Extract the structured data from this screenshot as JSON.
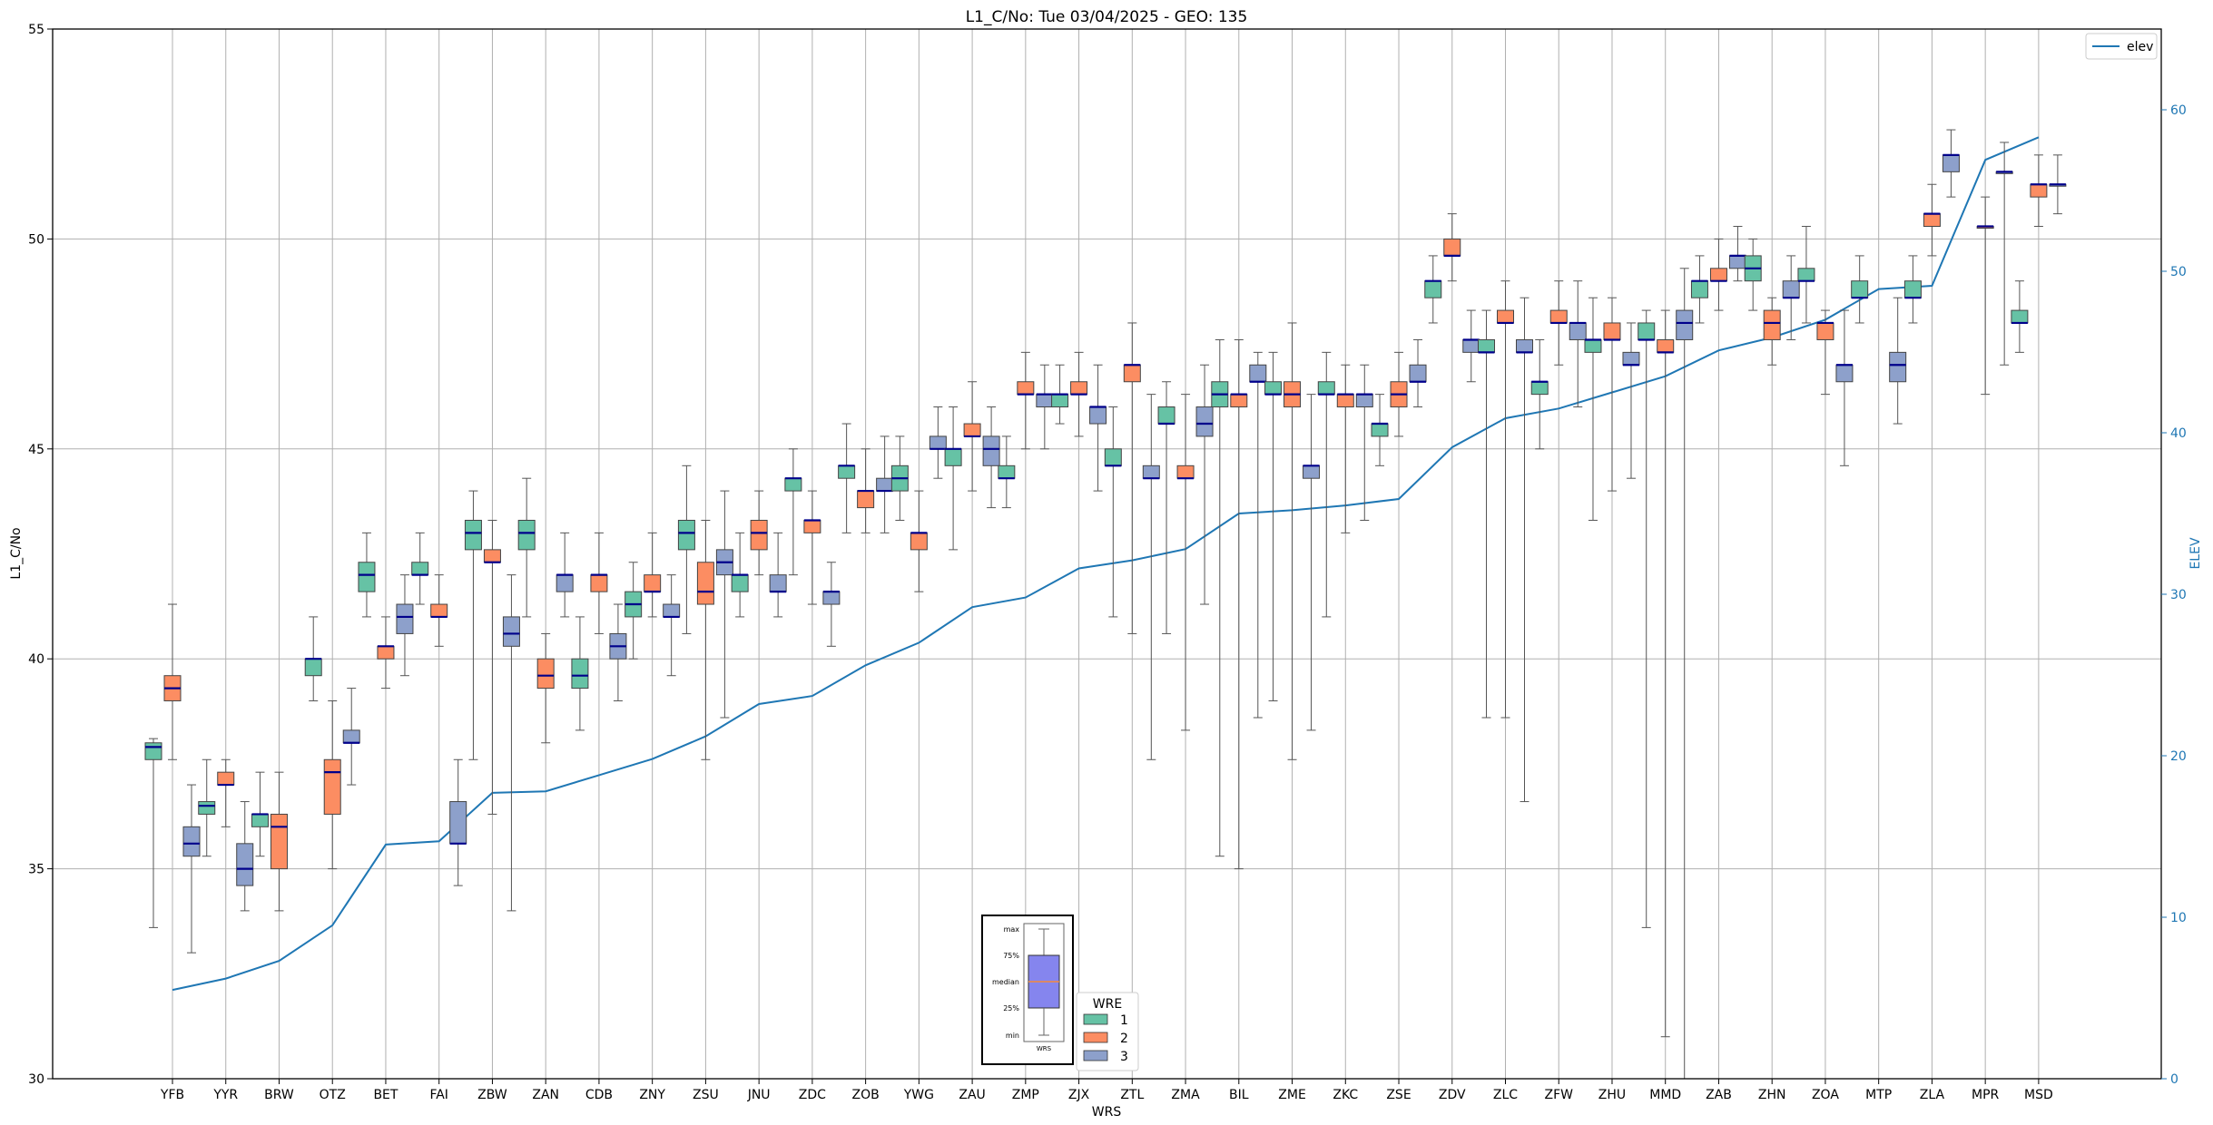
{
  "chart_data": {
    "type": "box",
    "title": "L1_C/No: Tue 03/04/2025 - GEO: 135",
    "xlabel": "WRS",
    "ylabel": "L1_C/No",
    "y2label": "ELEV",
    "ylim": [
      30,
      55
    ],
    "y2lim": [
      0,
      65
    ],
    "yticks": [
      "30",
      "35",
      "40",
      "45",
      "50",
      "55"
    ],
    "y2ticks": [
      "0",
      "10",
      "20",
      "30",
      "40",
      "50",
      "60"
    ],
    "grid": true,
    "categories": [
      "YFB",
      "YYR",
      "BRW",
      "OTZ",
      "BET",
      "FAI",
      "ZBW",
      "ZAN",
      "CDB",
      "ZNY",
      "ZSU",
      "JNU",
      "ZDC",
      "ZOB",
      "YWG",
      "ZAU",
      "ZMP",
      "ZJX",
      "ZTL",
      "ZMA",
      "BIL",
      "ZME",
      "ZKC",
      "ZSE",
      "ZDV",
      "ZLC",
      "ZFW",
      "ZHU",
      "MMD",
      "ZAB",
      "ZHN",
      "ZOA",
      "MTP",
      "ZLA",
      "MPR",
      "MSD"
    ],
    "wre_colors": {
      "1": "#66c2a5",
      "2": "#fc8d62",
      "3": "#8da0cb"
    },
    "median_color": "#00008b",
    "elev_color": "#1f77b4",
    "boxes": [
      {
        "site": "YFB",
        "wre": 1,
        "min": 33.6,
        "q1": 37.6,
        "median": 37.9,
        "q3": 38.0,
        "max": 38.1
      },
      {
        "site": "YFB",
        "wre": 2,
        "min": 37.6,
        "q1": 39.0,
        "median": 39.3,
        "q3": 39.6,
        "max": 41.3
      },
      {
        "site": "YFB",
        "wre": 3,
        "min": 33.0,
        "q1": 35.3,
        "median": 35.6,
        "q3": 36.0,
        "max": 37.0
      },
      {
        "site": "YYR",
        "wre": 1,
        "min": 35.3,
        "q1": 36.3,
        "median": 36.5,
        "q3": 36.6,
        "max": 37.6
      },
      {
        "site": "YYR",
        "wre": 2,
        "min": 36.0,
        "q1": 37.0,
        "median": 37.0,
        "q3": 37.3,
        "max": 37.6
      },
      {
        "site": "YYR",
        "wre": 3,
        "min": 34.0,
        "q1": 34.6,
        "median": 35.0,
        "q3": 35.6,
        "max": 36.6
      },
      {
        "site": "BRW",
        "wre": 1,
        "min": 35.3,
        "q1": 36.0,
        "median": 36.3,
        "q3": 36.3,
        "max": 37.3
      },
      {
        "site": "BRW",
        "wre": 2,
        "min": 34.0,
        "q1": 35.0,
        "median": 36.0,
        "q3": 36.3,
        "max": 37.3
      },
      {
        "site": "OTZ",
        "wre": 1,
        "min": 39.0,
        "q1": 39.6,
        "median": 40.0,
        "q3": 40.0,
        "max": 41.0
      },
      {
        "site": "OTZ",
        "wre": 2,
        "min": 35.0,
        "q1": 36.3,
        "median": 37.3,
        "q3": 37.6,
        "max": 39.0
      },
      {
        "site": "OTZ",
        "wre": 3,
        "min": 37.0,
        "q1": 38.0,
        "median": 38.0,
        "q3": 38.3,
        "max": 39.3
      },
      {
        "site": "BET",
        "wre": 1,
        "min": 41.0,
        "q1": 41.6,
        "median": 42.0,
        "q3": 42.3,
        "max": 43.0
      },
      {
        "site": "BET",
        "wre": 2,
        "min": 39.3,
        "q1": 40.0,
        "median": 40.3,
        "q3": 40.3,
        "max": 41.0
      },
      {
        "site": "BET",
        "wre": 3,
        "min": 39.6,
        "q1": 40.6,
        "median": 41.0,
        "q3": 41.3,
        "max": 42.0
      },
      {
        "site": "FAI",
        "wre": 1,
        "min": 41.3,
        "q1": 42.0,
        "median": 42.0,
        "q3": 42.3,
        "max": 43.0
      },
      {
        "site": "FAI",
        "wre": 2,
        "min": 40.3,
        "q1": 41.0,
        "median": 41.0,
        "q3": 41.3,
        "max": 42.0
      },
      {
        "site": "FAI",
        "wre": 3,
        "min": 34.6,
        "q1": 35.6,
        "median": 35.6,
        "q3": 36.6,
        "max": 37.6
      },
      {
        "site": "ZBW",
        "wre": 1,
        "min": 37.6,
        "q1": 42.6,
        "median": 43.0,
        "q3": 43.3,
        "max": 44.0
      },
      {
        "site": "ZBW",
        "wre": 2,
        "min": 36.3,
        "q1": 42.3,
        "median": 42.3,
        "q3": 42.6,
        "max": 43.3
      },
      {
        "site": "ZBW",
        "wre": 3,
        "min": 34.0,
        "q1": 40.3,
        "median": 40.6,
        "q3": 41.0,
        "max": 42.0
      },
      {
        "site": "ZAN",
        "wre": 1,
        "min": 41.0,
        "q1": 42.6,
        "median": 43.0,
        "q3": 43.3,
        "max": 44.3
      },
      {
        "site": "ZAN",
        "wre": 2,
        "min": 38.0,
        "q1": 39.3,
        "median": 39.6,
        "q3": 40.0,
        "max": 40.6
      },
      {
        "site": "ZAN",
        "wre": 3,
        "min": 41.0,
        "q1": 41.6,
        "median": 42.0,
        "q3": 42.0,
        "max": 43.0
      },
      {
        "site": "CDB",
        "wre": 1,
        "min": 38.3,
        "q1": 39.3,
        "median": 39.6,
        "q3": 40.0,
        "max": 41.0
      },
      {
        "site": "CDB",
        "wre": 2,
        "min": 40.6,
        "q1": 41.6,
        "median": 42.0,
        "q3": 42.0,
        "max": 43.0
      },
      {
        "site": "CDB",
        "wre": 3,
        "min": 39.0,
        "q1": 40.0,
        "median": 40.3,
        "q3": 40.6,
        "max": 41.3
      },
      {
        "site": "ZNY",
        "wre": 1,
        "min": 40.0,
        "q1": 41.0,
        "median": 41.3,
        "q3": 41.6,
        "max": 42.3
      },
      {
        "site": "ZNY",
        "wre": 2,
        "min": 41.0,
        "q1": 41.6,
        "median": 41.6,
        "q3": 42.0,
        "max": 43.0
      },
      {
        "site": "ZNY",
        "wre": 3,
        "min": 39.6,
        "q1": 41.0,
        "median": 41.0,
        "q3": 41.3,
        "max": 42.0
      },
      {
        "site": "ZSU",
        "wre": 1,
        "min": 40.6,
        "q1": 42.6,
        "median": 43.0,
        "q3": 43.3,
        "max": 44.6
      },
      {
        "site": "ZSU",
        "wre": 2,
        "min": 37.6,
        "q1": 41.3,
        "median": 41.6,
        "q3": 42.3,
        "max": 43.3
      },
      {
        "site": "ZSU",
        "wre": 3,
        "min": 38.6,
        "q1": 42.0,
        "median": 42.3,
        "q3": 42.6,
        "max": 44.0
      },
      {
        "site": "JNU",
        "wre": 1,
        "min": 41.0,
        "q1": 41.6,
        "median": 42.0,
        "q3": 42.0,
        "max": 43.0
      },
      {
        "site": "JNU",
        "wre": 2,
        "min": 42.0,
        "q1": 42.6,
        "median": 43.0,
        "q3": 43.3,
        "max": 44.0
      },
      {
        "site": "JNU",
        "wre": 3,
        "min": 41.0,
        "q1": 41.6,
        "median": 41.6,
        "q3": 42.0,
        "max": 43.0
      },
      {
        "site": "ZDC",
        "wre": 1,
        "min": 42.0,
        "q1": 44.0,
        "median": 44.3,
        "q3": 44.3,
        "max": 45.0
      },
      {
        "site": "ZDC",
        "wre": 2,
        "min": 41.3,
        "q1": 43.0,
        "median": 43.3,
        "q3": 43.3,
        "max": 44.0
      },
      {
        "site": "ZDC",
        "wre": 3,
        "min": 40.3,
        "q1": 41.3,
        "median": 41.6,
        "q3": 41.6,
        "max": 42.3
      },
      {
        "site": "ZOB",
        "wre": 1,
        "min": 43.0,
        "q1": 44.3,
        "median": 44.6,
        "q3": 44.6,
        "max": 45.6
      },
      {
        "site": "ZOB",
        "wre": 2,
        "min": 43.0,
        "q1": 43.6,
        "median": 44.0,
        "q3": 44.0,
        "max": 45.0
      },
      {
        "site": "ZOB",
        "wre": 3,
        "min": 43.0,
        "q1": 44.0,
        "median": 44.0,
        "q3": 44.3,
        "max": 45.3
      },
      {
        "site": "YWG",
        "wre": 1,
        "min": 43.3,
        "q1": 44.0,
        "median": 44.3,
        "q3": 44.6,
        "max": 45.3
      },
      {
        "site": "YWG",
        "wre": 2,
        "min": 41.6,
        "q1": 42.6,
        "median": 43.0,
        "q3": 43.0,
        "max": 44.0
      },
      {
        "site": "YWG",
        "wre": 3,
        "min": 44.3,
        "q1": 45.0,
        "median": 45.0,
        "q3": 45.3,
        "max": 46.0
      },
      {
        "site": "ZAU",
        "wre": 1,
        "min": 42.6,
        "q1": 44.6,
        "median": 45.0,
        "q3": 45.0,
        "max": 46.0
      },
      {
        "site": "ZAU",
        "wre": 2,
        "min": 44.0,
        "q1": 45.3,
        "median": 45.3,
        "q3": 45.6,
        "max": 46.6
      },
      {
        "site": "ZAU",
        "wre": 3,
        "min": 43.6,
        "q1": 44.6,
        "median": 45.0,
        "q3": 45.3,
        "max": 46.0
      },
      {
        "site": "ZMP",
        "wre": 1,
        "min": 43.6,
        "q1": 44.3,
        "median": 44.3,
        "q3": 44.6,
        "max": 45.3
      },
      {
        "site": "ZMP",
        "wre": 2,
        "min": 45.0,
        "q1": 46.3,
        "median": 46.3,
        "q3": 46.6,
        "max": 47.3
      },
      {
        "site": "ZMP",
        "wre": 3,
        "min": 45.0,
        "q1": 46.0,
        "median": 46.3,
        "q3": 46.3,
        "max": 47.0
      },
      {
        "site": "ZJX",
        "wre": 1,
        "min": 45.6,
        "q1": 46.0,
        "median": 46.3,
        "q3": 46.3,
        "max": 47.0
      },
      {
        "site": "ZJX",
        "wre": 2,
        "min": 45.3,
        "q1": 46.3,
        "median": 46.3,
        "q3": 46.6,
        "max": 47.3
      },
      {
        "site": "ZJX",
        "wre": 3,
        "min": 44.0,
        "q1": 45.6,
        "median": 46.0,
        "q3": 46.0,
        "max": 47.0
      },
      {
        "site": "ZTL",
        "wre": 1,
        "min": 41.0,
        "q1": 44.6,
        "median": 44.6,
        "q3": 45.0,
        "max": 46.0
      },
      {
        "site": "ZTL",
        "wre": 2,
        "min": 40.6,
        "q1": 46.6,
        "median": 47.0,
        "q3": 47.0,
        "max": 48.0
      },
      {
        "site": "ZTL",
        "wre": 3,
        "min": 37.6,
        "q1": 44.3,
        "median": 44.3,
        "q3": 44.6,
        "max": 46.3
      },
      {
        "site": "ZMA",
        "wre": 1,
        "min": 40.6,
        "q1": 45.6,
        "median": 45.6,
        "q3": 46.0,
        "max": 46.6
      },
      {
        "site": "ZMA",
        "wre": 2,
        "min": 38.3,
        "q1": 44.3,
        "median": 44.3,
        "q3": 44.6,
        "max": 46.3
      },
      {
        "site": "ZMA",
        "wre": 3,
        "min": 41.3,
        "q1": 45.3,
        "median": 45.6,
        "q3": 46.0,
        "max": 47.0
      },
      {
        "site": "BIL",
        "wre": 1,
        "min": 35.3,
        "q1": 46.0,
        "median": 46.3,
        "q3": 46.6,
        "max": 47.6
      },
      {
        "site": "BIL",
        "wre": 2,
        "min": 35.0,
        "q1": 46.0,
        "median": 46.3,
        "q3": 46.3,
        "max": 47.6
      },
      {
        "site": "BIL",
        "wre": 3,
        "min": 38.6,
        "q1": 46.6,
        "median": 46.6,
        "q3": 47.0,
        "max": 47.3
      },
      {
        "site": "ZME",
        "wre": 1,
        "min": 39.0,
        "q1": 46.3,
        "median": 46.3,
        "q3": 46.6,
        "max": 47.3
      },
      {
        "site": "ZME",
        "wre": 2,
        "min": 37.6,
        "q1": 46.0,
        "median": 46.3,
        "q3": 46.6,
        "max": 48.0
      },
      {
        "site": "ZME",
        "wre": 3,
        "min": 38.3,
        "q1": 44.3,
        "median": 44.6,
        "q3": 44.6,
        "max": 46.3
      },
      {
        "site": "ZKC",
        "wre": 1,
        "min": 41.0,
        "q1": 46.3,
        "median": 46.3,
        "q3": 46.6,
        "max": 47.3
      },
      {
        "site": "ZKC",
        "wre": 2,
        "min": 43.0,
        "q1": 46.0,
        "median": 46.3,
        "q3": 46.3,
        "max": 47.0
      },
      {
        "site": "ZKC",
        "wre": 3,
        "min": 43.3,
        "q1": 46.0,
        "median": 46.3,
        "q3": 46.3,
        "max": 47.0
      },
      {
        "site": "ZSE",
        "wre": 1,
        "min": 44.6,
        "q1": 45.3,
        "median": 45.6,
        "q3": 45.6,
        "max": 46.3
      },
      {
        "site": "ZSE",
        "wre": 2,
        "min": 45.3,
        "q1": 46.0,
        "median": 46.3,
        "q3": 46.6,
        "max": 47.3
      },
      {
        "site": "ZSE",
        "wre": 3,
        "min": 46.0,
        "q1": 46.6,
        "median": 46.6,
        "q3": 47.0,
        "max": 47.6
      },
      {
        "site": "ZDV",
        "wre": 1,
        "min": 48.0,
        "q1": 48.6,
        "median": 49.0,
        "q3": 49.0,
        "max": 49.6
      },
      {
        "site": "ZDV",
        "wre": 2,
        "min": 49.0,
        "q1": 49.6,
        "median": 49.6,
        "q3": 50.0,
        "max": 50.6
      },
      {
        "site": "ZDV",
        "wre": 3,
        "min": 46.6,
        "q1": 47.3,
        "median": 47.6,
        "q3": 47.6,
        "max": 48.3
      },
      {
        "site": "ZLC",
        "wre": 1,
        "min": 38.6,
        "q1": 47.3,
        "median": 47.3,
        "q3": 47.6,
        "max": 48.3
      },
      {
        "site": "ZLC",
        "wre": 2,
        "min": 38.6,
        "q1": 48.0,
        "median": 48.0,
        "q3": 48.3,
        "max": 49.0
      },
      {
        "site": "ZLC",
        "wre": 3,
        "min": 36.6,
        "q1": 47.3,
        "median": 47.3,
        "q3": 47.6,
        "max": 48.6
      },
      {
        "site": "ZFW",
        "wre": 1,
        "min": 45.0,
        "q1": 46.3,
        "median": 46.6,
        "q3": 46.6,
        "max": 47.6
      },
      {
        "site": "ZFW",
        "wre": 2,
        "min": 47.0,
        "q1": 48.0,
        "median": 48.0,
        "q3": 48.3,
        "max": 49.0
      },
      {
        "site": "ZFW",
        "wre": 3,
        "min": 46.0,
        "q1": 47.6,
        "median": 48.0,
        "q3": 48.0,
        "max": 49.0
      },
      {
        "site": "ZHU",
        "wre": 1,
        "min": 43.3,
        "q1": 47.3,
        "median": 47.6,
        "q3": 47.6,
        "max": 48.6
      },
      {
        "site": "ZHU",
        "wre": 2,
        "min": 44.0,
        "q1": 47.6,
        "median": 47.6,
        "q3": 48.0,
        "max": 48.6
      },
      {
        "site": "ZHU",
        "wre": 3,
        "min": 44.3,
        "q1": 47.0,
        "median": 47.0,
        "q3": 47.3,
        "max": 48.0
      },
      {
        "site": "MMD",
        "wre": 1,
        "min": 33.6,
        "q1": 47.6,
        "median": 47.6,
        "q3": 48.0,
        "max": 48.3
      },
      {
        "site": "MMD",
        "wre": 2,
        "min": 31.0,
        "q1": 47.3,
        "median": 47.3,
        "q3": 47.6,
        "max": 48.3
      },
      {
        "site": "MMD",
        "wre": 3,
        "min": 30.0,
        "q1": 47.6,
        "median": 48.0,
        "q3": 48.3,
        "max": 49.3
      },
      {
        "site": "ZAB",
        "wre": 1,
        "min": 48.0,
        "q1": 48.6,
        "median": 49.0,
        "q3": 49.0,
        "max": 49.6
      },
      {
        "site": "ZAB",
        "wre": 2,
        "min": 48.3,
        "q1": 49.0,
        "median": 49.0,
        "q3": 49.3,
        "max": 50.0
      },
      {
        "site": "ZAB",
        "wre": 3,
        "min": 49.0,
        "q1": 49.3,
        "median": 49.6,
        "q3": 49.6,
        "max": 50.3
      },
      {
        "site": "ZHN",
        "wre": 1,
        "min": 48.3,
        "q1": 49.0,
        "median": 49.3,
        "q3": 49.6,
        "max": 50.0
      },
      {
        "site": "ZHN",
        "wre": 2,
        "min": 47.0,
        "q1": 47.6,
        "median": 48.0,
        "q3": 48.3,
        "max": 48.6
      },
      {
        "site": "ZHN",
        "wre": 3,
        "min": 47.6,
        "q1": 48.6,
        "median": 48.6,
        "q3": 49.0,
        "max": 49.6
      },
      {
        "site": "ZOA",
        "wre": 1,
        "min": 48.0,
        "q1": 49.0,
        "median": 49.0,
        "q3": 49.3,
        "max": 50.3
      },
      {
        "site": "ZOA",
        "wre": 2,
        "min": 46.3,
        "q1": 47.6,
        "median": 48.0,
        "q3": 48.0,
        "max": 48.3
      },
      {
        "site": "ZOA",
        "wre": 3,
        "min": 44.6,
        "q1": 46.6,
        "median": 47.0,
        "q3": 47.0,
        "max": 48.3
      },
      {
        "site": "MTP",
        "wre": 1,
        "min": 48.0,
        "q1": 48.6,
        "median": 48.6,
        "q3": 49.0,
        "max": 49.6
      },
      {
        "site": "MTP",
        "wre": 3,
        "min": 45.6,
        "q1": 46.6,
        "median": 47.0,
        "q3": 47.3,
        "max": 48.6
      },
      {
        "site": "ZLA",
        "wre": 1,
        "min": 48.0,
        "q1": 48.6,
        "median": 48.6,
        "q3": 49.0,
        "max": 49.6
      },
      {
        "site": "ZLA",
        "wre": 2,
        "min": 49.6,
        "q1": 50.3,
        "median": 50.6,
        "q3": 50.6,
        "max": 51.3
      },
      {
        "site": "ZLA",
        "wre": 3,
        "min": 51.0,
        "q1": 51.6,
        "median": 52.0,
        "q3": 52.0,
        "max": 52.6
      },
      {
        "site": "MPR",
        "wre": 2,
        "min": 46.3,
        "q1": 50.3,
        "median": 50.3,
        "q3": 50.3,
        "max": 51.0
      },
      {
        "site": "MPR",
        "wre": 3,
        "min": 47.0,
        "q1": 51.6,
        "median": 51.6,
        "q3": 51.6,
        "max": 52.3
      },
      {
        "site": "MSD",
        "wre": 1,
        "min": 47.3,
        "q1": 48.0,
        "median": 48.0,
        "q3": 48.3,
        "max": 49.0
      },
      {
        "site": "MSD",
        "wre": 2,
        "min": 50.3,
        "q1": 51.0,
        "median": 51.3,
        "q3": 51.3,
        "max": 52.0
      },
      {
        "site": "MSD",
        "wre": 3,
        "min": 50.6,
        "q1": 51.3,
        "median": 51.3,
        "q3": 51.3,
        "max": 52.0
      }
    ],
    "elev_series": {
      "name": "elev",
      "x": [
        "YFB",
        "YYR",
        "BRW",
        "OTZ",
        "BET",
        "FAI",
        "ZBW",
        "ZAN",
        "CDB",
        "ZNY",
        "ZSU",
        "JNU",
        "ZDC",
        "ZOB",
        "YWG",
        "ZAU",
        "ZMP",
        "ZJX",
        "ZTL",
        "ZMA",
        "BIL",
        "ZME",
        "ZKC",
        "ZSE",
        "ZDV",
        "ZLC",
        "ZFW",
        "ZHU",
        "MMD",
        "ZAB",
        "ZHN",
        "ZOA",
        "MTP",
        "ZLA",
        "MPR",
        "MSD"
      ],
      "values": [
        5.5,
        6.2,
        7.3,
        9.5,
        14.5,
        14.7,
        17.7,
        17.8,
        18.8,
        19.8,
        21.2,
        23.2,
        23.7,
        25.6,
        27.0,
        29.2,
        29.8,
        31.6,
        32.1,
        32.8,
        35.0,
        35.2,
        35.5,
        35.9,
        39.1,
        40.9,
        41.5,
        42.5,
        43.5,
        45.1,
        45.9,
        47.0,
        48.9,
        49.1,
        56.9,
        58.3
      ]
    },
    "legend_elev": {
      "label": "elev",
      "position": "top-right"
    },
    "legend_wre": {
      "title": "WRE",
      "entries": [
        "1",
        "2",
        "3"
      ],
      "position": "bottom-center"
    },
    "inset": {
      "labels": [
        "max",
        "75%",
        "median",
        "25%",
        "min"
      ],
      "caption": "WRS"
    }
  }
}
